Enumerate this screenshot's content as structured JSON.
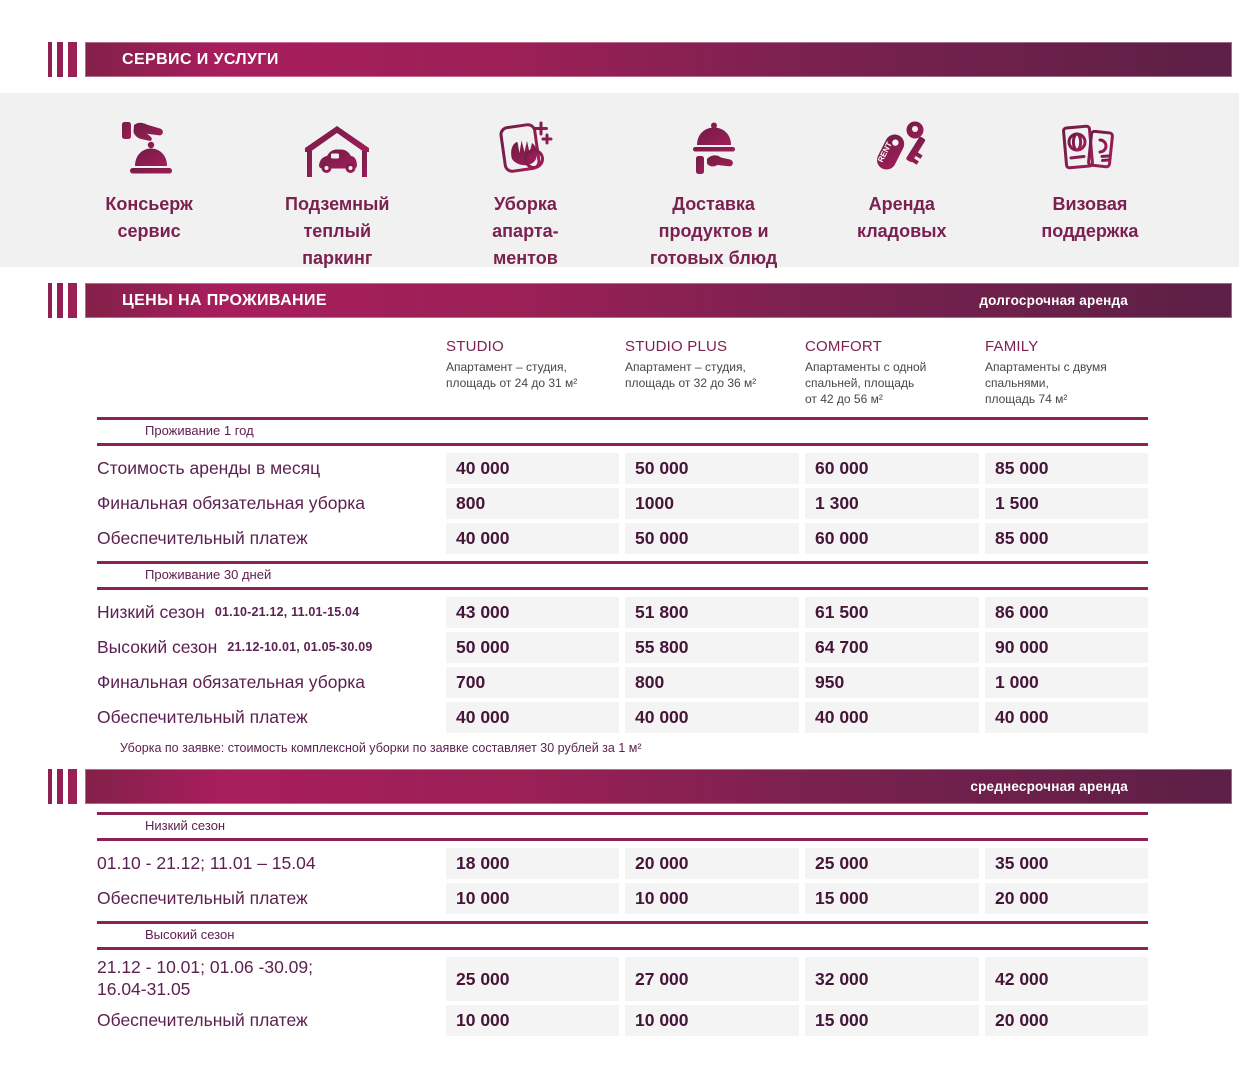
{
  "colors": {
    "bar_gradient_start": "#832049",
    "bar_gradient_bright": "#a81e5d",
    "bar_gradient_end": "#5c1f45",
    "rule": "#8e2153",
    "label_text": "#5d2151",
    "value_text": "#461639",
    "services_bg": "#f2f1f2",
    "cell_bg": "#f5f4f5",
    "icon_color": "#8a1e50"
  },
  "services": {
    "title": "СЕРВИС И УСЛУГИ",
    "items": [
      {
        "icon": "concierge-bell-icon",
        "label": "Консьерж\nсервис"
      },
      {
        "icon": "parking-garage-icon",
        "label": "Подземный\nтеплый\nпаркинг"
      },
      {
        "icon": "cleaning-wipe-icon",
        "label": "Уборка\nапарта-\nментов"
      },
      {
        "icon": "food-delivery-cloche-icon",
        "label": "Доставка\nпродуктов и\nготовых блюд"
      },
      {
        "icon": "rent-keys-icon",
        "label": "Аренда\nкладовых",
        "icon_text": "RENT"
      },
      {
        "icon": "visa-passport-icon",
        "label": "Визовая\nподдержка"
      }
    ]
  },
  "pricing": {
    "title": "ЦЕНЫ НА ПРОЖИВАНИЕ",
    "badge": "долгосрочная аренда",
    "columns": [
      {
        "name": "STUDIO",
        "desc": "Апартамент – студия,\nплощадь от 24 до 31 м²"
      },
      {
        "name": "STUDIO PLUS",
        "desc": "Апартамент – студия,\nплощадь от 32 до 36 м²"
      },
      {
        "name": "COMFORT",
        "desc": "Апартаменты с одной\nспальней, площадь\nот 42 до 56 м²"
      },
      {
        "name": "FAMILY",
        "desc": "Апартаменты с двумя\nспальнями,\nплощадь 74 м²"
      }
    ],
    "groups": [
      {
        "header": "Проживание 1 год",
        "rows": [
          {
            "label": "Стоимость аренды в месяц",
            "values": [
              "40 000",
              "50 000",
              "60 000",
              "85 000"
            ]
          },
          {
            "label": "Финальная обязательная уборка",
            "values": [
              "800",
              "1000",
              "1 300",
              "1 500"
            ]
          },
          {
            "label": "Обеспечительный платеж",
            "values": [
              "40 000",
              "50 000",
              "60 000",
              "85 000"
            ]
          }
        ]
      },
      {
        "header": "Проживание 30 дней",
        "rows": [
          {
            "label": "Низкий сезон",
            "sublabel": "01.10-21.12, 11.01-15.04",
            "values": [
              "43 000",
              "51 800",
              "61 500",
              "86 000"
            ]
          },
          {
            "label": "Высокий сезон",
            "sublabel": "21.12-10.01, 01.05-30.09",
            "values": [
              "50 000",
              "55 800",
              "64 700",
              "90 000"
            ]
          },
          {
            "label": "Финальная обязательная уборка",
            "values": [
              "700",
              "800",
              "950",
              "1 000"
            ]
          },
          {
            "label": "Обеспечительный платеж",
            "values": [
              "40 000",
              "40 000",
              "40 000",
              "40 000"
            ]
          }
        ]
      }
    ],
    "footnote": "Уборка по заявке:  стоимость комплексной уборки по заявке составляет 30 рублей за 1 м²"
  },
  "midterm": {
    "badge": "среднесрочная аренда",
    "groups": [
      {
        "header": "Низкий сезон",
        "rows": [
          {
            "label": "01.10 - 21.12; 11.01 – 15.04",
            "values": [
              "18 000",
              "20 000",
              "25 000",
              "35 000"
            ]
          },
          {
            "label": "Обеспечительный платеж",
            "values": [
              "10 000",
              "10 000",
              "15 000",
              "20 000"
            ]
          }
        ]
      },
      {
        "header": "Высокий сезон",
        "rows": [
          {
            "label": "21.12 - 10.01;  01.06 -30.09;\n16.04-31.05",
            "values": [
              "25 000",
              "27 000",
              "32 000",
              "42 000"
            ]
          },
          {
            "label": "Обеспечительный платеж",
            "values": [
              "10 000",
              "10 000",
              "15 000",
              "20 000"
            ]
          }
        ]
      }
    ]
  }
}
